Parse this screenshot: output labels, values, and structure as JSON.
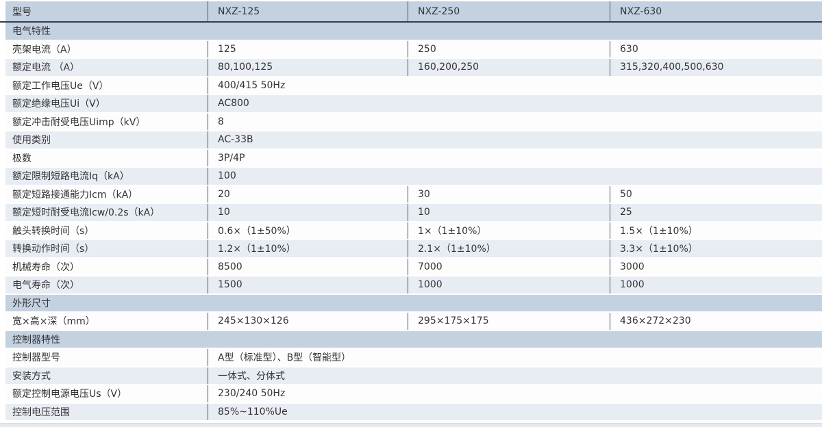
{
  "table": {
    "header": {
      "label": "型号",
      "models": [
        "NXZ-125",
        "NXZ-250",
        "NXZ-630"
      ]
    },
    "sections": [
      {
        "title": "电气特性",
        "rows": [
          {
            "label": "壳架电流（A）",
            "values": [
              "125",
              "250",
              "630"
            ]
          },
          {
            "label": "额定电流 （A）",
            "values": [
              "80,100,125",
              "160,200,250",
              "315,320,400,500,630"
            ]
          },
          {
            "label": "额定工作电压Ue（V）",
            "span": "400/415 50Hz"
          },
          {
            "label": "额定绝缘电压Ui（V）",
            "span": "AC800"
          },
          {
            "label": "额定冲击耐受电压Uimp（kV）",
            "span": "8"
          },
          {
            "label": "使用类别",
            "span": "AC-33B"
          },
          {
            "label": "极数",
            "span": "3P/4P"
          },
          {
            "label": "额定限制短路电流Iq（kA）",
            "span": "100"
          },
          {
            "label": "额定短路接通能力Icm（kA）",
            "values": [
              "20",
              "30",
              "50"
            ]
          },
          {
            "label": "额定短时耐受电流Icw/0.2s（kA）",
            "values": [
              "10",
              "10",
              "25"
            ]
          },
          {
            "label": "触头转换时间（s）",
            "values": [
              "0.6×（1±50%）",
              "1×（1±10%）",
              "1.5×（1±10%）"
            ]
          },
          {
            "label": "转换动作时间（s）",
            "values": [
              "1.2×（1±10%）",
              "2.1×（1±10%）",
              "3.3×（1±10%）"
            ]
          },
          {
            "label": "机械寿命（次）",
            "values": [
              "8500",
              "7000",
              "3000"
            ]
          },
          {
            "label": "电气寿命（次）",
            "values": [
              "1500",
              "1000",
              "1000"
            ]
          }
        ]
      },
      {
        "title": "外形尺寸",
        "rows": [
          {
            "label": "宽×高×深（mm）",
            "values": [
              "245×130×126",
              "295×175×175",
              "436×272×230"
            ]
          }
        ]
      },
      {
        "title": "控制器特性",
        "rows": [
          {
            "label": "控制器型号",
            "span": "A型（标准型）、B型（智能型）"
          },
          {
            "label": "安装方式",
            "span": "一体式、分体式"
          },
          {
            "label": "额定控制电源电压Us（V）",
            "span": "230/240 50Hz"
          },
          {
            "label": "控制电压范围",
            "span": "85%~110%Ue"
          }
        ]
      }
    ],
    "colors": {
      "header_bg": "#c3d1e1",
      "stripe_bg": "#e8edf4",
      "white_row_bg": "#fdfdfe",
      "header_underline": "#343e4a",
      "column_divider": "#454f59",
      "text": "#333333"
    }
  }
}
